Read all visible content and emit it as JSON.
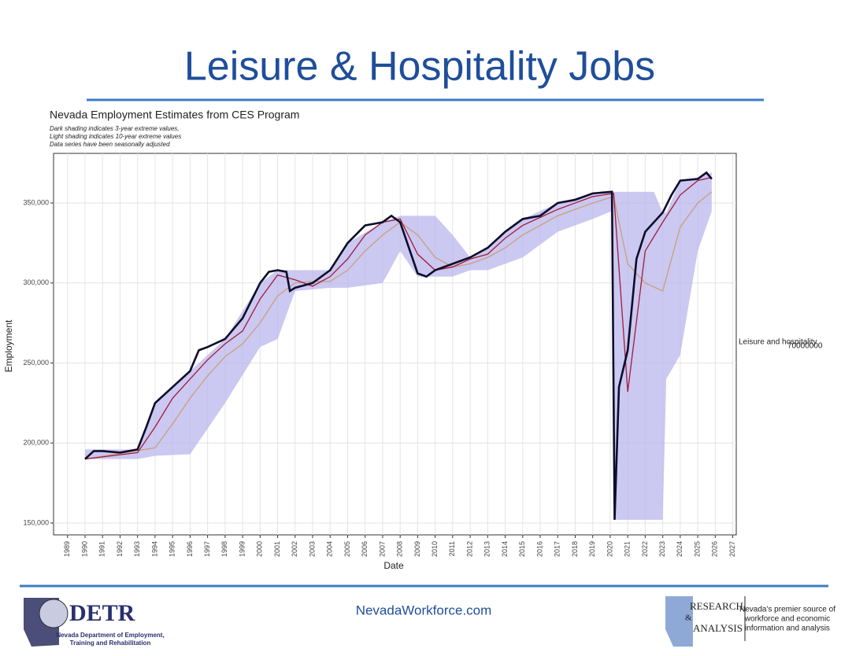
{
  "slide": {
    "title": "Leisure & Hospitality Jobs",
    "footer": {
      "url": "NevadaWorkforce.com",
      "left_logo": "DETR",
      "left_lines": [
        "Nevada Department of Employment,",
        "Training and Rehabilitation"
      ],
      "right_logo": [
        "RESEARCH",
        "&",
        "ANALYSIS"
      ],
      "right_lines": [
        "Nevada's premier source of",
        "workforce and economic",
        "information and analysis"
      ]
    }
  },
  "chart_data": {
    "type": "line",
    "title": "Nevada Employment Estimates from CES Program",
    "notes": [
      "Dark shading indicates 3-year extreme values,",
      "Light shading indicates 10-year extreme values",
      "Data series have been seasonally adjusted"
    ],
    "x_label": "Date",
    "y_label": "Employment",
    "legend_label": "Leisure and hospitality",
    "legend_value": "70000000",
    "xlim": [
      1988.2,
      2027.2
    ],
    "ylim": [
      142600,
      381000
    ],
    "xticks": [
      1989,
      1990,
      1991,
      1992,
      1993,
      1994,
      1995,
      1996,
      1997,
      1998,
      1999,
      2000,
      2001,
      2002,
      2003,
      2004,
      2005,
      2006,
      2007,
      2008,
      2009,
      2010,
      2011,
      2012,
      2013,
      2014,
      2015,
      2016,
      2017,
      2018,
      2019,
      2020,
      2021,
      2022,
      2023,
      2024,
      2025,
      2026,
      2027
    ],
    "yticks": [
      {
        "value": 150000,
        "label": "150,000"
      },
      {
        "value": 200000,
        "label": "200,000"
      },
      {
        "value": 250000,
        "label": "250,000"
      },
      {
        "value": 300000,
        "label": "300,000"
      },
      {
        "value": 350000,
        "label": "350,000"
      }
    ],
    "grid": true,
    "bands": [
      {
        "color": "#b9b6ec",
        "x": [
          1990,
          1993,
          1994,
          1996,
          1998,
          2000,
          2001,
          2002,
          2004,
          2005,
          2007,
          2008,
          2009,
          2010,
          2011,
          2012,
          2013,
          2015,
          2017,
          2019,
          2020.1,
          2020.3,
          2022.5,
          2023,
          2023.2,
          2024,
          2025,
          2025.8
        ],
        "lower": [
          190000,
          190000,
          192000,
          193000,
          225000,
          260000,
          265000,
          295000,
          297000,
          297000,
          300000,
          320000,
          304000,
          304000,
          304000,
          308000,
          308000,
          316000,
          332000,
          340000,
          345000,
          152000,
          152000,
          152000,
          240000,
          255000,
          320000,
          345000
        ],
        "upper": [
          196000,
          196000,
          225000,
          245000,
          265000,
          300000,
          308000,
          308000,
          308000,
          325000,
          338000,
          342000,
          342000,
          342000,
          330000,
          316000,
          322000,
          340000,
          350000,
          356000,
          357000,
          357000,
          357000,
          344000,
          344000,
          364000,
          366000,
          369000
        ]
      }
    ],
    "series": [
      {
        "color": "#c9a07a",
        "x": [
          1990,
          1994,
          1995,
          1996,
          1997,
          1998,
          1999,
          2000,
          2001,
          2002,
          2003,
          2004,
          2005,
          2006,
          2007,
          2008,
          2009,
          2010,
          2011,
          2012,
          2013,
          2014,
          2015,
          2016,
          2017,
          2018,
          2019,
          2020.2,
          2021,
          2022,
          2023,
          2024,
          2025,
          2025.8
        ],
        "values": [
          190000,
          197000,
          212000,
          228000,
          242000,
          254000,
          262000,
          275000,
          292000,
          300000,
          301000,
          301000,
          308000,
          320000,
          330000,
          338000,
          330000,
          316000,
          310000,
          312000,
          316000,
          322000,
          330000,
          336000,
          342000,
          346000,
          350000,
          354000,
          312000,
          300000,
          295000,
          335000,
          350000,
          357000
        ]
      },
      {
        "color": "#a01c3c",
        "x": [
          1990,
          1993,
          1994,
          1995,
          1996,
          1997,
          1998,
          1999,
          2000,
          2001,
          2002,
          2003,
          2004,
          2005,
          2006,
          2007,
          2008,
          2009,
          2010,
          2011,
          2012,
          2013,
          2014,
          2015,
          2016,
          2017,
          2018,
          2019,
          2020.2,
          2021,
          2022,
          2023,
          2024,
          2025,
          2025.8
        ],
        "values": [
          190000,
          194000,
          210000,
          228000,
          240000,
          252000,
          262000,
          270000,
          290000,
          305000,
          302000,
          298000,
          304000,
          315000,
          330000,
          338000,
          340000,
          318000,
          308000,
          310000,
          315000,
          318000,
          328000,
          336000,
          341000,
          346000,
          350000,
          354000,
          356000,
          232000,
          320000,
          338000,
          355000,
          364000,
          366000
        ]
      },
      {
        "name": "Leisure and hospitality",
        "color": "#0d0d2b",
        "x": [
          1990,
          1990.5,
          1991,
          1992,
          1993,
          1993.5,
          1994,
          1995,
          1996,
          1996.5,
          1997,
          1998,
          1999,
          2000,
          2000.5,
          2001,
          2001.5,
          2001.7,
          2002,
          2003,
          2004,
          2005,
          2006,
          2007,
          2007.5,
          2008,
          2008.5,
          2009,
          2009.5,
          2010,
          2011,
          2012,
          2013,
          2014,
          2015,
          2016,
          2017,
          2018,
          2019,
          2020.1,
          2020.25,
          2020.5,
          2021,
          2021.5,
          2022,
          2023,
          2023.5,
          2024,
          2025,
          2025.5,
          2025.8
        ],
        "values": [
          190000,
          195000,
          195000,
          194000,
          196000,
          210000,
          225000,
          235000,
          245000,
          258000,
          260000,
          265000,
          278000,
          300000,
          307000,
          308000,
          307000,
          295000,
          297000,
          300000,
          308000,
          325000,
          336000,
          338000,
          342000,
          338000,
          322000,
          306000,
          304000,
          308000,
          312000,
          316000,
          322000,
          332000,
          340000,
          342000,
          350000,
          352000,
          356000,
          357000,
          152000,
          235000,
          258000,
          315000,
          332000,
          344000,
          355000,
          364000,
          365000,
          369000,
          365000
        ]
      }
    ]
  }
}
